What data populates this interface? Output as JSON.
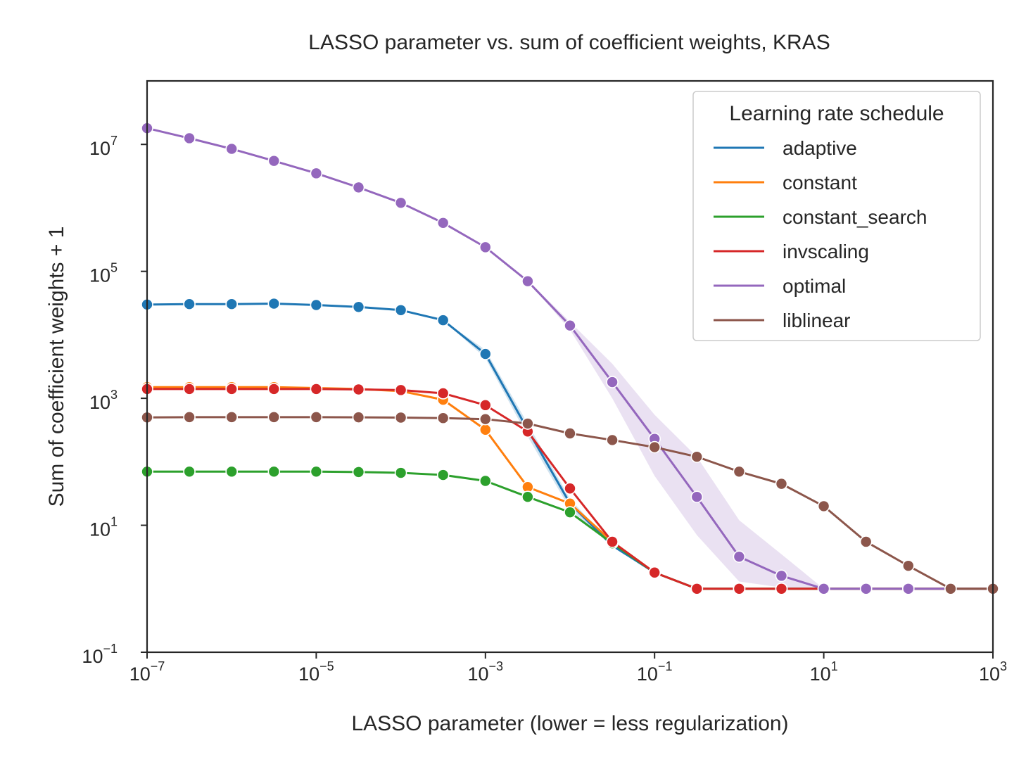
{
  "chart_data": {
    "type": "line",
    "title": "LASSO parameter vs. sum of coefficient weights, KRAS",
    "xlabel": "LASSO parameter (lower = less regularization)",
    "ylabel": "Sum of coefficient weights + 1",
    "x_scale": "log",
    "y_scale": "log",
    "xlim": [
      1e-07,
      1000
    ],
    "ylim": [
      0.1,
      100000000
    ],
    "x_ticks": [
      {
        "value": 1e-07,
        "base": "10",
        "exp": "−7"
      },
      {
        "value": 1e-05,
        "base": "10",
        "exp": "−5"
      },
      {
        "value": 0.001,
        "base": "10",
        "exp": "−3"
      },
      {
        "value": 0.1,
        "base": "10",
        "exp": "−1"
      },
      {
        "value": 10,
        "base": "10",
        "exp": "1"
      },
      {
        "value": 1000,
        "base": "10",
        "exp": "3"
      }
    ],
    "y_ticks": [
      {
        "value": 0.1,
        "base": "10",
        "exp": "−1"
      },
      {
        "value": 10,
        "base": "10",
        "exp": "1"
      },
      {
        "value": 1000,
        "base": "10",
        "exp": "3"
      },
      {
        "value": 100000,
        "base": "10",
        "exp": "5"
      },
      {
        "value": 10000000,
        "base": "10",
        "exp": "7"
      }
    ],
    "grid": false,
    "legend": {
      "title": "Learning rate schedule",
      "position": "top-right"
    },
    "x": [
      1e-07,
      3.162e-07,
      1e-06,
      3.162e-06,
      1e-05,
      3.162e-05,
      0.0001,
      0.0003162,
      0.001,
      0.003162,
      0.01,
      0.03162,
      0.1,
      0.3162,
      1,
      3.162,
      10,
      31.62,
      100,
      316.2,
      1000
    ],
    "series": [
      {
        "name": "adaptive",
        "color": "#1f77b4",
        "values": [
          30000,
          30500,
          30500,
          31000,
          29500,
          27500,
          24500,
          17000,
          5000,
          320,
          22,
          4.8,
          1.8,
          1,
          1,
          1,
          1,
          1,
          1,
          1,
          1
        ],
        "markers": [
          true,
          true,
          true,
          true,
          true,
          true,
          true,
          true,
          true,
          false,
          false,
          false,
          false,
          false,
          false,
          false,
          false,
          false,
          false,
          false,
          false
        ],
        "band": [
          [
            30000,
            30000
          ],
          [
            30500,
            30500
          ],
          [
            30500,
            30500
          ],
          [
            31000,
            31000
          ],
          [
            29500,
            29500
          ],
          [
            27500,
            27500
          ],
          [
            24500,
            24500
          ],
          [
            17000,
            17000
          ],
          [
            4300,
            5800
          ],
          [
            250,
            400
          ],
          [
            18,
            26
          ],
          [
            4.6,
            5.0
          ],
          [
            1.8,
            1.8
          ],
          [
            1,
            1
          ],
          [
            1,
            1
          ],
          [
            1,
            1
          ],
          [
            1,
            1
          ],
          [
            1,
            1
          ],
          [
            1,
            1
          ],
          [
            1,
            1
          ],
          [
            1,
            1
          ]
        ]
      },
      {
        "name": "constant",
        "color": "#ff7f0e",
        "values": [
          1500,
          1500,
          1500,
          1500,
          1450,
          1400,
          1300,
          950,
          320,
          40,
          22,
          5.5,
          1.8,
          1,
          1,
          1,
          1,
          1,
          1,
          1,
          1
        ],
        "markers": [
          true,
          true,
          true,
          true,
          true,
          true,
          true,
          true,
          true,
          true,
          true,
          true,
          true,
          true,
          true,
          true,
          true,
          false,
          false,
          false,
          false
        ],
        "band": []
      },
      {
        "name": "constant_search",
        "color": "#2ca02c",
        "values": [
          70,
          70,
          70,
          70,
          70,
          69,
          67,
          62,
          50,
          28,
          16,
          5.2,
          1.8,
          1,
          1,
          1,
          1,
          1,
          1,
          1,
          1
        ],
        "markers": [
          true,
          true,
          true,
          true,
          true,
          true,
          true,
          true,
          true,
          true,
          true,
          true,
          true,
          true,
          true,
          true,
          true,
          false,
          false,
          false,
          false
        ],
        "band": []
      },
      {
        "name": "invscaling",
        "color": "#d62728",
        "values": [
          1400,
          1400,
          1400,
          1400,
          1400,
          1380,
          1350,
          1200,
          780,
          300,
          38,
          5.5,
          1.8,
          1,
          1,
          1,
          1,
          1,
          1,
          1,
          1
        ],
        "markers": [
          true,
          true,
          true,
          true,
          true,
          true,
          true,
          true,
          true,
          true,
          true,
          true,
          true,
          true,
          true,
          true,
          true,
          false,
          false,
          false,
          false
        ],
        "band": []
      },
      {
        "name": "optimal",
        "color": "#9467bd",
        "values": [
          18000000,
          12500000,
          8500000,
          5500000,
          3500000,
          2100000,
          1200000,
          580000,
          240000,
          70000,
          14000,
          1800,
          230,
          28,
          3.2,
          1.6,
          1,
          1,
          1,
          1,
          1
        ],
        "markers": [
          true,
          true,
          true,
          true,
          true,
          true,
          true,
          true,
          true,
          true,
          true,
          true,
          true,
          true,
          true,
          true,
          true,
          true,
          true,
          false,
          false
        ],
        "band": [
          [
            18000000,
            18000000
          ],
          [
            12500000,
            12500000
          ],
          [
            8500000,
            8500000
          ],
          [
            5500000,
            5500000
          ],
          [
            3500000,
            3500000
          ],
          [
            2100000,
            2100000
          ],
          [
            1200000,
            1200000
          ],
          [
            580000,
            580000
          ],
          [
            240000,
            240000
          ],
          [
            70000,
            72000
          ],
          [
            12000,
            16000
          ],
          [
            1000,
            3500
          ],
          [
            60,
            550
          ],
          [
            7,
            120
          ],
          [
            1.3,
            12
          ],
          [
            1.05,
            3.5
          ],
          [
            1,
            1
          ],
          [
            1,
            1
          ],
          [
            1,
            1
          ],
          [
            1,
            1
          ],
          [
            1,
            1
          ]
        ]
      },
      {
        "name": "liblinear",
        "color": "#8c564b",
        "values": [
          500,
          505,
          505,
          505,
          505,
          502,
          497,
          488,
          470,
          400,
          280,
          220,
          170,
          120,
          70,
          45,
          20,
          5.5,
          2.3,
          1,
          1
        ],
        "markers": [
          true,
          true,
          true,
          true,
          true,
          true,
          true,
          true,
          true,
          true,
          true,
          true,
          true,
          true,
          true,
          true,
          true,
          true,
          true,
          true,
          true
        ],
        "band": []
      }
    ]
  }
}
